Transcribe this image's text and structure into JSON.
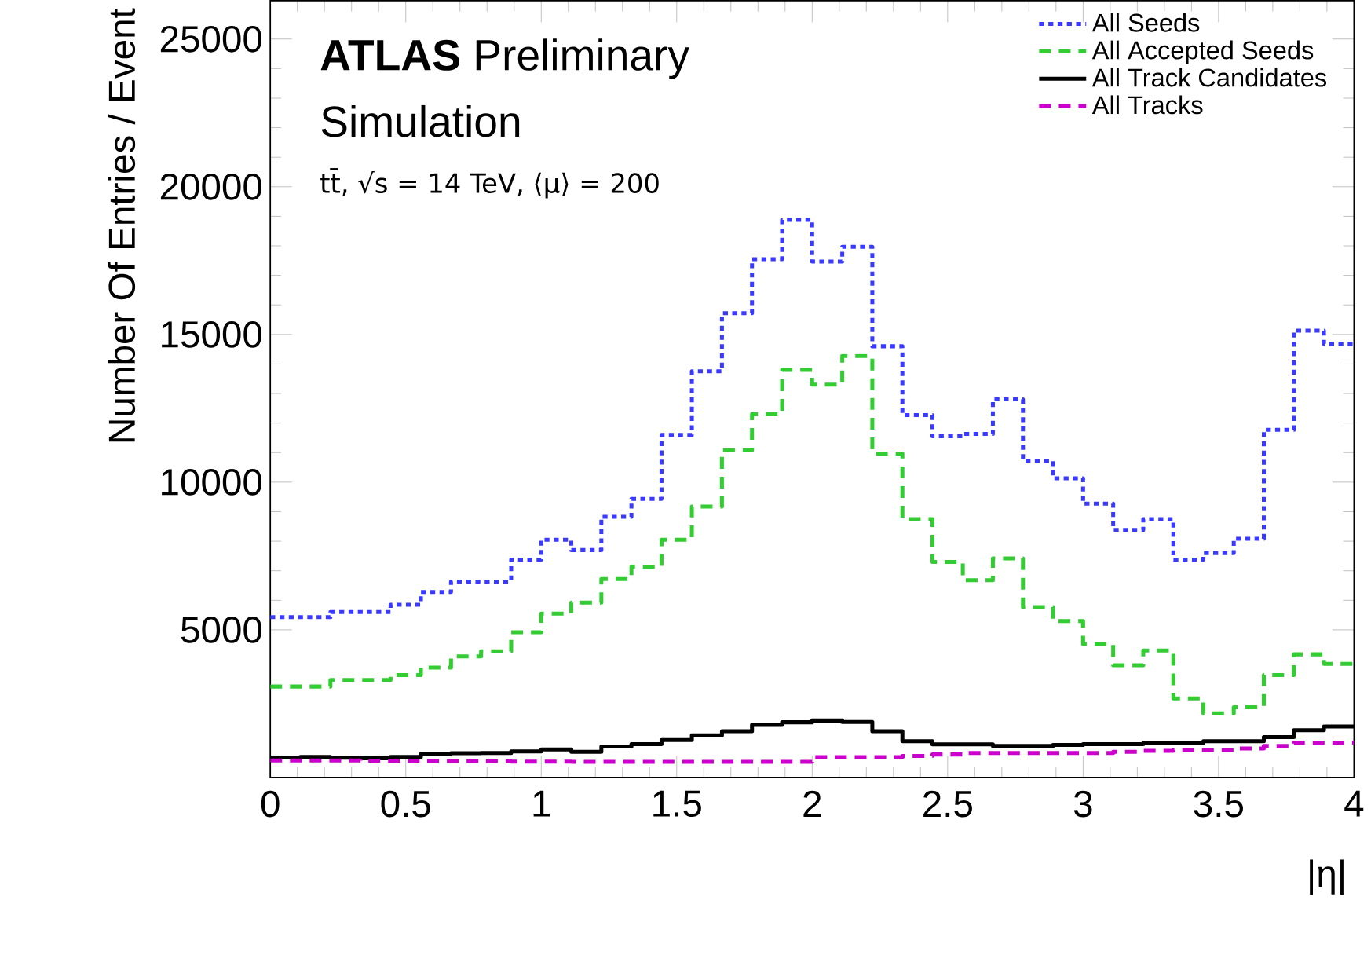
{
  "chart_data": {
    "type": "histogram",
    "xlabel": "|η|",
    "ylabel": "Number Of Entries / Event",
    "annotations": [
      "**ATLAS** Preliminary",
      "Simulation",
      "tt̄, √s = 14 TeV, ⟨μ⟩ = 200"
    ],
    "bins": [
      0,
      0.111,
      0.222,
      0.333,
      0.444,
      0.556,
      0.667,
      0.778,
      0.889,
      1,
      1.111,
      1.222,
      1.333,
      1.444,
      1.556,
      1.667,
      1.778,
      1.889,
      2,
      2.111,
      2.222,
      2.333,
      2.444,
      2.556,
      2.667,
      2.778,
      2.889,
      3,
      3.111,
      3.222,
      3.333,
      3.444,
      3.556,
      3.667,
      3.778,
      3.889,
      4
    ],
    "series": [
      {
        "name": "All Seeds",
        "color": "#3a3aff",
        "line_style": "dotted",
        "values": [
          5430,
          5430,
          5600,
          5600,
          5850,
          6280,
          6630,
          6630,
          7380,
          8050,
          7700,
          8830,
          9430,
          11600,
          13750,
          15720,
          17550,
          18880,
          17470,
          17970,
          14600,
          12270,
          11550,
          11630,
          12800,
          10720,
          10130,
          9270,
          8380,
          8750,
          7380,
          7600,
          8080,
          11770,
          15130,
          14680
        ]
      },
      {
        "name": "All Accepted Seeds",
        "color": "#33cc33",
        "line_style": "dashed",
        "values": [
          3080,
          3080,
          3300,
          3300,
          3470,
          3720,
          4100,
          4270,
          4920,
          5550,
          5920,
          6720,
          7130,
          8050,
          9170,
          11080,
          12300,
          13800,
          13300,
          14270,
          10970,
          8750,
          7300,
          6680,
          7420,
          5770,
          5300,
          4520,
          3800,
          4300,
          2680,
          2170,
          2380,
          3470,
          4170,
          3850
        ]
      },
      {
        "name": "All Track Candidates",
        "color": "#000000",
        "line_style": "solid",
        "values": [
          680,
          700,
          670,
          650,
          700,
          800,
          820,
          830,
          880,
          950,
          870,
          1050,
          1130,
          1270,
          1430,
          1570,
          1780,
          1870,
          1930,
          1880,
          1570,
          1230,
          1120,
          1120,
          1070,
          1070,
          1100,
          1130,
          1130,
          1170,
          1170,
          1230,
          1230,
          1370,
          1600,
          1730
        ]
      },
      {
        "name": "All Tracks",
        "color": "#cc00cc",
        "line_style": "dashed",
        "values": [
          580,
          580,
          580,
          570,
          570,
          560,
          560,
          550,
          540,
          540,
          530,
          530,
          530,
          530,
          530,
          530,
          530,
          530,
          690,
          690,
          690,
          730,
          780,
          830,
          830,
          830,
          830,
          830,
          870,
          900,
          930,
          930,
          980,
          1070,
          1180,
          1180
        ]
      }
    ],
    "xlim": [
      0,
      4
    ],
    "ylim": [
      0,
      26300
    ],
    "xticks": [
      0,
      0.5,
      1,
      1.5,
      2,
      2.5,
      3,
      3.5,
      4
    ],
    "yticks": [
      5000,
      10000,
      15000,
      20000,
      25000
    ],
    "legend": "top right"
  }
}
